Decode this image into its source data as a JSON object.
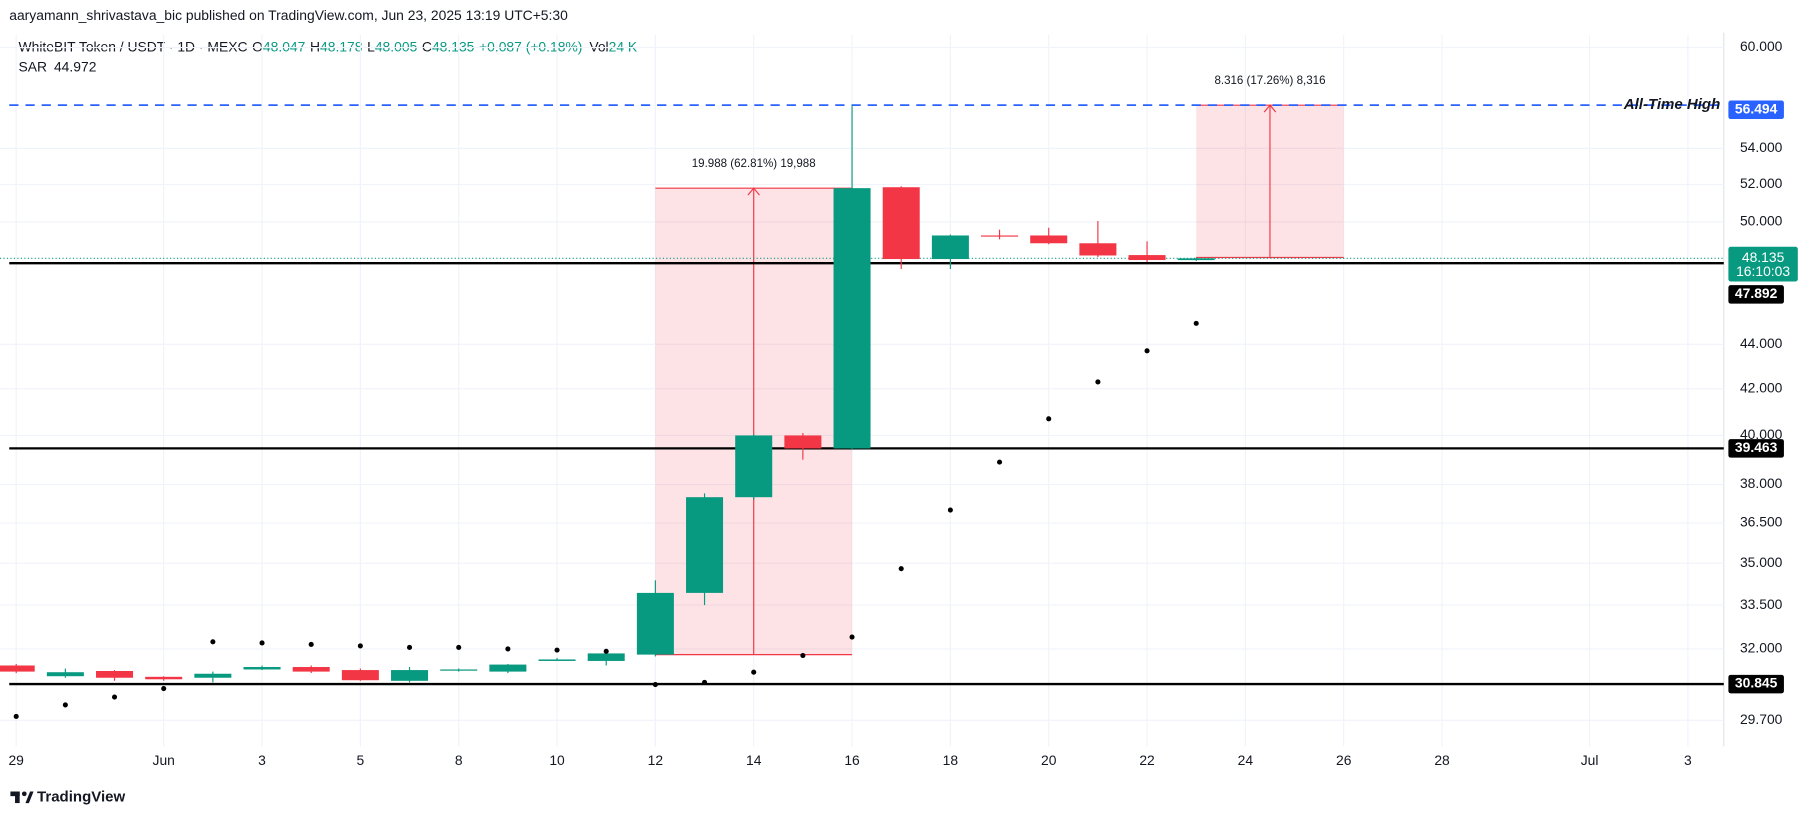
{
  "header": {
    "publisher": "aaryamann_shrivastava_bic published on TradingView.com, Jun 23, 2025 13:19 UTC+5:30",
    "symbol": "WhiteBIT Token / USDT · 1D · MEXC",
    "o": "O",
    "h": "H",
    "l": "L",
    "c": "C",
    "change": "+0.087 (+0.18%)",
    "vol_label": "Vol",
    "vol": "24 K"
  },
  "footer": {
    "brand": "TradingView"
  },
  "chart_data": {
    "type": "candlestick",
    "log_scale": true,
    "grid": true,
    "up_color": "#089981",
    "down_color": "#f23645",
    "categories": [
      "29",
      null,
      null,
      "Jun",
      null,
      "3",
      null,
      "5",
      null,
      "8",
      null,
      "10",
      null,
      "12",
      null,
      "14",
      null,
      "16",
      null,
      "18",
      null,
      "20",
      null,
      "22",
      null,
      "24",
      null,
      "26",
      null,
      "28",
      null,
      null,
      "Jul",
      null,
      "3"
    ],
    "open": [
      31.45,
      31.1,
      31.27,
      31.08,
      31.05,
      31.32,
      31.4,
      31.3,
      30.95,
      31.28,
      31.25,
      31.6,
      31.6,
      31.81,
      33.93,
      37.5,
      40.0,
      39.46,
      51.85,
      48.1,
      49.3,
      49.3,
      48.9,
      48.3,
      48.047,
      null,
      null,
      null,
      null,
      null,
      null,
      null,
      null,
      null,
      null
    ],
    "high": [
      31.5,
      31.35,
      31.3,
      31.1,
      31.25,
      31.45,
      31.45,
      31.35,
      31.4,
      31.35,
      31.5,
      31.7,
      31.95,
      34.38,
      37.65,
      40.05,
      40.1,
      56.494,
      51.9,
      49.35,
      49.6,
      49.7,
      50.05,
      49.0,
      48.178,
      null,
      null,
      null,
      null,
      null,
      null,
      null,
      null,
      null,
      null
    ],
    "low": [
      31.2,
      31.05,
      30.95,
      30.95,
      30.9,
      31.3,
      31.2,
      30.95,
      30.9,
      31.25,
      31.2,
      31.6,
      31.45,
      31.75,
      33.5,
      37.4,
      39.0,
      39.4,
      47.6,
      47.6,
      49.1,
      48.85,
      48.2,
      47.95,
      48.005,
      null,
      null,
      null,
      null,
      null,
      null,
      null,
      null,
      null,
      null
    ],
    "close": [
      31.25,
      31.23,
      31.05,
      31.0,
      31.18,
      31.4,
      31.25,
      30.97,
      31.3,
      31.32,
      31.48,
      31.65,
      31.85,
      33.93,
      37.5,
      40.0,
      39.46,
      51.8,
      48.1,
      49.3,
      49.25,
      48.9,
      48.28,
      48.05,
      48.135,
      null,
      null,
      null,
      null,
      null,
      null,
      null,
      null,
      null,
      null
    ],
    "indicator": {
      "name": "SAR",
      "color": "#000000",
      "values": [
        29.82,
        30.18,
        30.43,
        30.7,
        32.24,
        32.2,
        32.15,
        32.1,
        32.05,
        32.05,
        32.0,
        31.96,
        31.92,
        30.83,
        30.9,
        31.23,
        31.78,
        32.4,
        34.8,
        37.0,
        38.9,
        40.7,
        42.3,
        43.7,
        44.972,
        null,
        null,
        null,
        null,
        null,
        null,
        null,
        null,
        null,
        null
      ]
    },
    "ylim": [
      28.9,
      60.8
    ],
    "yticks": [
      {
        "value": 60,
        "label": "60.000"
      },
      {
        "value": 54,
        "label": "54.000"
      },
      {
        "value": 52,
        "label": "52.000"
      },
      {
        "value": 50,
        "label": "50.000"
      },
      {
        "value": 44,
        "label": "44.000"
      },
      {
        "value": 42,
        "label": "42.000"
      },
      {
        "value": 40,
        "label": "40.000"
      },
      {
        "value": 38,
        "label": "38.000"
      },
      {
        "value": 36.5,
        "label": "36.500"
      },
      {
        "value": 35,
        "label": "35.000"
      },
      {
        "value": 33.5,
        "label": "33.500"
      },
      {
        "value": 32,
        "label": "32.000"
      },
      {
        "value": 29.7,
        "label": "29.700"
      }
    ],
    "levels": [
      47.892,
      39.463,
      30.845
    ],
    "ath": {
      "label": "All-Time High",
      "value": 56.494,
      "color": "#2962ff"
    },
    "countdown": "16:10:03",
    "measures": [
      {
        "start": 13,
        "end": 17,
        "low": 31.81,
        "high": 51.8,
        "label": "19.988 (62.81%) 19,988"
      },
      {
        "start": 24,
        "end": 27,
        "low": 48.178,
        "high": 56.494,
        "label": "8.316 (17.26%) 8,316"
      }
    ]
  }
}
